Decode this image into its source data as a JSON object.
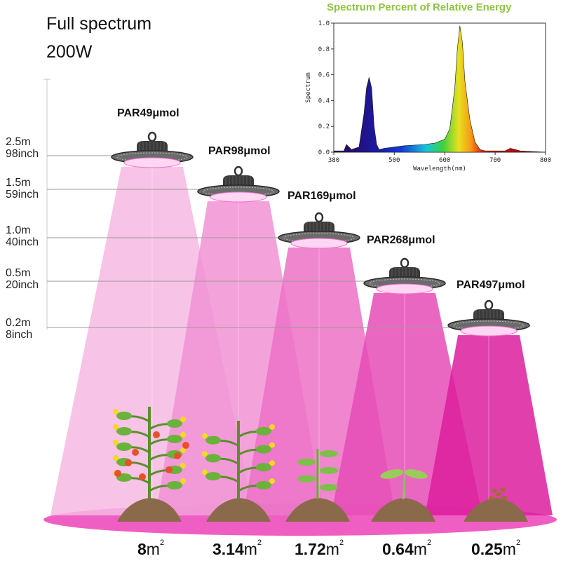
{
  "title": {
    "line1": "Full spectrum",
    "line2": "200W"
  },
  "heights": [
    {
      "m": "2.5m",
      "inch": "98inch"
    },
    {
      "m": "1.5m",
      "inch": "59inch"
    },
    {
      "m": "1.0m",
      "inch": "40inch"
    },
    {
      "m": "0.5m",
      "inch": "20inch"
    },
    {
      "m": "0.2m",
      "inch": "8inch"
    }
  ],
  "lamps": [
    {
      "par": "PAR49μmol",
      "area": "8",
      "area_unit": "m",
      "area_exp": "2",
      "beam_color": "#f6b8e2"
    },
    {
      "par": "PAR98μmol",
      "area": "3.14",
      "area_unit": "m",
      "area_exp": "2",
      "beam_color": "#f193d4"
    },
    {
      "par": "PAR169μmol",
      "area": "1.72",
      "area_unit": "m",
      "area_exp": "2",
      "beam_color": "#ec71c6"
    },
    {
      "par": "PAR268μmol",
      "area": "0.64",
      "area_unit": "m",
      "area_exp": "2",
      "beam_color": "#e64cb6"
    },
    {
      "par": "PAR497μmol",
      "area": "0.25",
      "area_unit": "m",
      "area_exp": "2",
      "beam_color": "#dc1f9e"
    }
  ],
  "plants": [
    "tomato-plant-flowering",
    "tomato-plant-young",
    "seedling-tall",
    "seedling-sprout",
    "seeds"
  ],
  "colors": {
    "ground": "#ef5fc3",
    "soil": "#8a6a4a",
    "lamp_body": "#3a3a3a",
    "lamp_glow": "#ffd6f3"
  },
  "spectrum": {
    "title": "Spectrum Percent of Relative Energy",
    "chart_data": {
      "type": "area",
      "xlabel": "Wavelength(nm)",
      "ylabel": "Spectrum",
      "xlim": [
        380,
        800
      ],
      "ylim": [
        0,
        1.0
      ],
      "x_ticks": [
        "380",
        "500",
        "600",
        "700",
        "800"
      ],
      "y_ticks": [
        "0.0",
        "0.2",
        "0.4",
        "0.6",
        "0.8",
        "1.0"
      ],
      "x": [
        380,
        400,
        405,
        415,
        430,
        440,
        445,
        450,
        455,
        460,
        465,
        470,
        480,
        500,
        520,
        560,
        580,
        600,
        610,
        620,
        625,
        630,
        635,
        640,
        650,
        660,
        670,
        680,
        700,
        720,
        730,
        740,
        750,
        800
      ],
      "y": [
        0.01,
        0.01,
        0.06,
        0.02,
        0.04,
        0.3,
        0.5,
        0.58,
        0.5,
        0.2,
        0.06,
        0.02,
        0.03,
        0.04,
        0.05,
        0.06,
        0.07,
        0.1,
        0.18,
        0.5,
        0.8,
        0.98,
        0.85,
        0.55,
        0.25,
        0.08,
        0.02,
        0.01,
        0.01,
        0.01,
        0.03,
        0.02,
        0.01,
        0.0
      ]
    }
  }
}
